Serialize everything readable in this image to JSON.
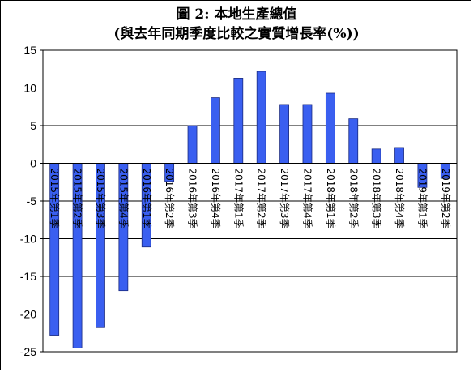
{
  "chart_data": {
    "type": "bar",
    "title": "圖 2: 本地生產總值",
    "subtitle": "(與去年同期季度比較之實質增長率(%))",
    "categories": [
      "2015年第1季",
      "2015年第2季",
      "2015年第3季",
      "2015年第4季",
      "2016年第1季",
      "2016年第2季",
      "2016年第3季",
      "2016年第4季",
      "2017年第1季",
      "2017年第2季",
      "2017年第3季",
      "2017年第4季",
      "2018年第1季",
      "2018年第2季",
      "2018年第3季",
      "2018年第4季",
      "2019年第1季",
      "2019年第2季"
    ],
    "values": [
      -22.8,
      -24.5,
      -21.8,
      -16.9,
      -11.1,
      -2.4,
      5.0,
      8.7,
      11.3,
      12.2,
      7.8,
      7.8,
      9.3,
      5.9,
      1.9,
      2.1,
      -3.2,
      -2.0
    ],
    "ylim": [
      -25,
      15
    ],
    "yticks": [
      15,
      10,
      5,
      0,
      -5,
      -10,
      -15,
      -20,
      -25
    ],
    "xlabel": "",
    "ylabel": "",
    "grid": true,
    "legend": "none",
    "bar_color": "#3a5ff0",
    "bar_edge_color": "#1a2a80"
  }
}
